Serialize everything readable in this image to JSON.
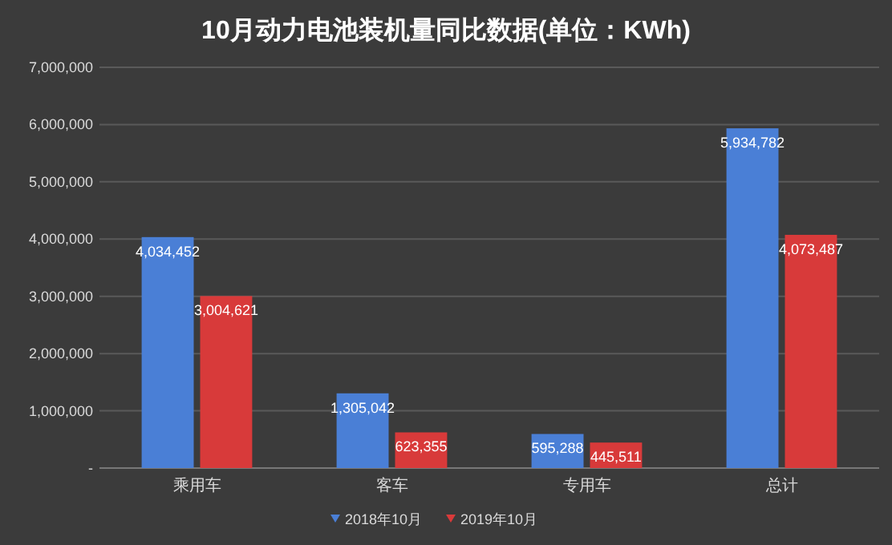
{
  "chart_data": {
    "type": "bar",
    "title": "10月动力电池装机量同比数据(单位：KWh)",
    "categories": [
      "乘用车",
      "客车",
      "专用车",
      "总计"
    ],
    "series": [
      {
        "name": "2018年10月",
        "color": "#4a7fd6",
        "values": [
          4034452,
          1305042,
          595288,
          5934782
        ],
        "value_labels": [
          "4,034,452",
          "1,305,042",
          "595,288",
          "5,934,782"
        ]
      },
      {
        "name": "2019年10月",
        "color": "#d83a3a",
        "values": [
          3004621,
          623355,
          445511,
          4073487
        ],
        "value_labels": [
          "3,004,621",
          "623,355",
          "445,511",
          "4,073,487"
        ]
      }
    ],
    "ylim": [
      0,
      7000000
    ],
    "yticks": [
      {
        "value": 0,
        "label": "-"
      },
      {
        "value": 1000000,
        "label": "1,000,000"
      },
      {
        "value": 2000000,
        "label": "2,000,000"
      },
      {
        "value": 3000000,
        "label": "3,000,000"
      },
      {
        "value": 4000000,
        "label": "4,000,000"
      },
      {
        "value": 5000000,
        "label": "5,000,000"
      },
      {
        "value": 6000000,
        "label": "6,000,000"
      },
      {
        "value": 7000000,
        "label": "7,000,000"
      }
    ],
    "grid": "y",
    "legend": "bottom"
  }
}
